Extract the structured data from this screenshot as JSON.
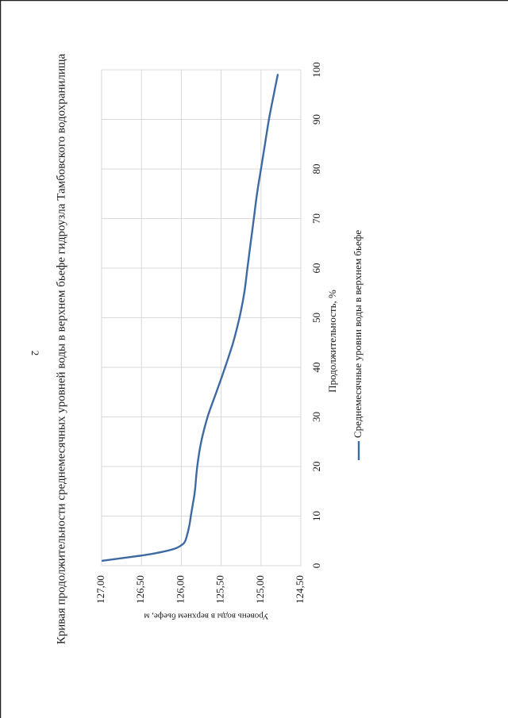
{
  "page": {
    "number": "2"
  },
  "chart_data": {
    "type": "line",
    "title": "Кривая продолжительности среднемесячных уровней воды в верхнем бьефе гидроузла Тамбовского водохранилища",
    "xlabel": "Продолжительность, %",
    "ylabel": "Уровень воды в верхнем бьефе, м",
    "xlim": [
      0,
      100
    ],
    "ylim": [
      124.5,
      127.0
    ],
    "x_ticks": [
      "0",
      "10",
      "20",
      "30",
      "40",
      "50",
      "60",
      "70",
      "80",
      "90",
      "100"
    ],
    "y_ticks": [
      "127,00",
      "126,50",
      "126,00",
      "125,50",
      "125,00",
      "124,50"
    ],
    "grid": true,
    "legend_position": "bottom",
    "series_color": "#3e6aa3",
    "series": [
      {
        "name": "Среднемесячные уровни воды в верхнем бьефе",
        "x": [
          1,
          1.5,
          2,
          2.5,
          3,
          3.5,
          4,
          4.5,
          5,
          6,
          8,
          10,
          12,
          15,
          20,
          25,
          30,
          35,
          40,
          45,
          50,
          55,
          60,
          65,
          70,
          75,
          80,
          85,
          90,
          95,
          99
        ],
        "y": [
          126.99,
          126.75,
          126.52,
          126.33,
          126.18,
          126.07,
          126.01,
          125.97,
          125.95,
          125.93,
          125.9,
          125.88,
          125.86,
          125.83,
          125.8,
          125.75,
          125.67,
          125.56,
          125.45,
          125.35,
          125.27,
          125.21,
          125.17,
          125.13,
          125.09,
          125.05,
          125.0,
          124.95,
          124.9,
          124.84,
          124.79
        ]
      }
    ]
  }
}
